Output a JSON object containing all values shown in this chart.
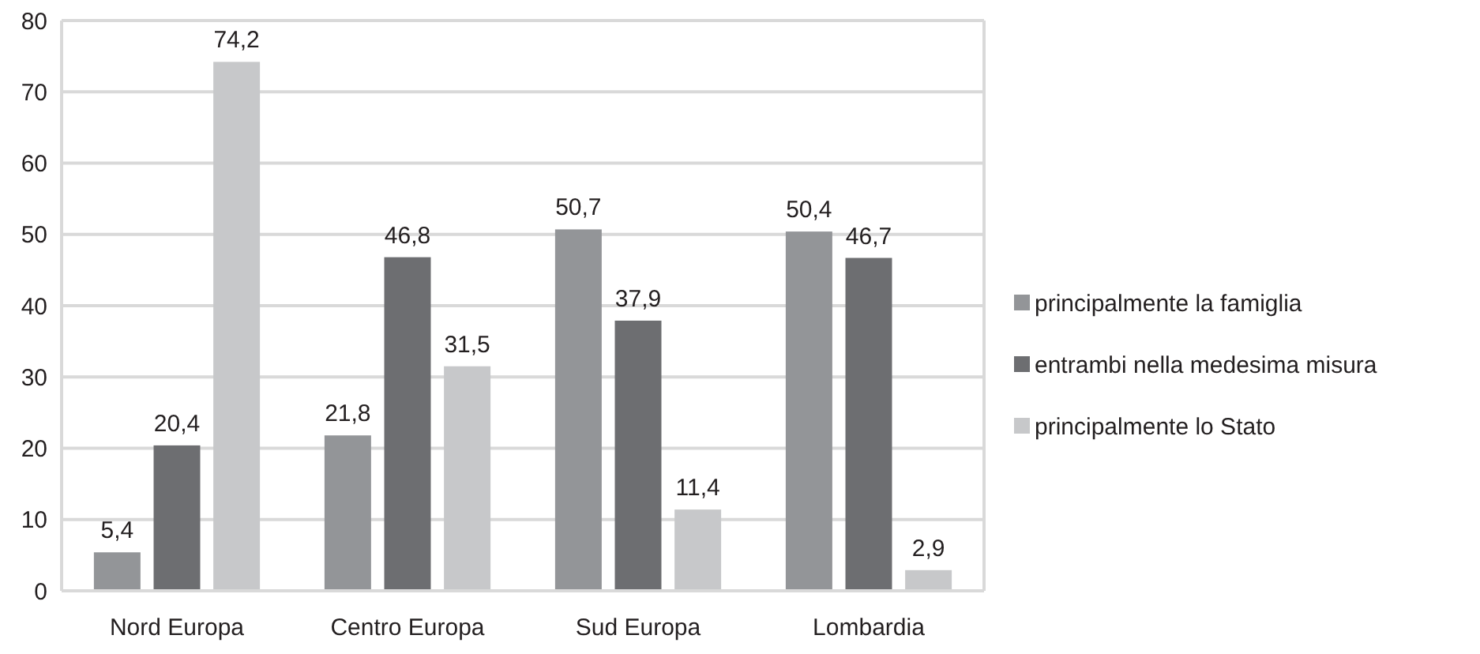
{
  "chart_data": {
    "type": "bar",
    "categories": [
      "Nord Europa",
      "Centro Europa",
      "Sud Europa",
      "Lombardia"
    ],
    "series": [
      {
        "name": "principalmente la famiglia",
        "color": "#939598",
        "values": [
          5.4,
          21.8,
          50.7,
          50.4
        ],
        "value_labels": [
          "5,4",
          "21,8",
          "50,7",
          "50,4"
        ]
      },
      {
        "name": "entrambi nella medesima misura",
        "color": "#6d6e71",
        "values": [
          20.4,
          46.8,
          37.9,
          46.7
        ],
        "value_labels": [
          "20,4",
          "46,8",
          "37,9",
          "46,7"
        ]
      },
      {
        "name": "principalmente lo Stato",
        "color": "#c7c8ca",
        "values": [
          74.2,
          31.5,
          11.4,
          2.9
        ],
        "value_labels": [
          "74,2",
          "31,5",
          "11,4",
          "2,9"
        ]
      }
    ],
    "ylim": [
      0,
      80
    ],
    "yticks": [
      0,
      10,
      20,
      30,
      40,
      50,
      60,
      70,
      80
    ],
    "grid": "y",
    "legend": "right"
  }
}
